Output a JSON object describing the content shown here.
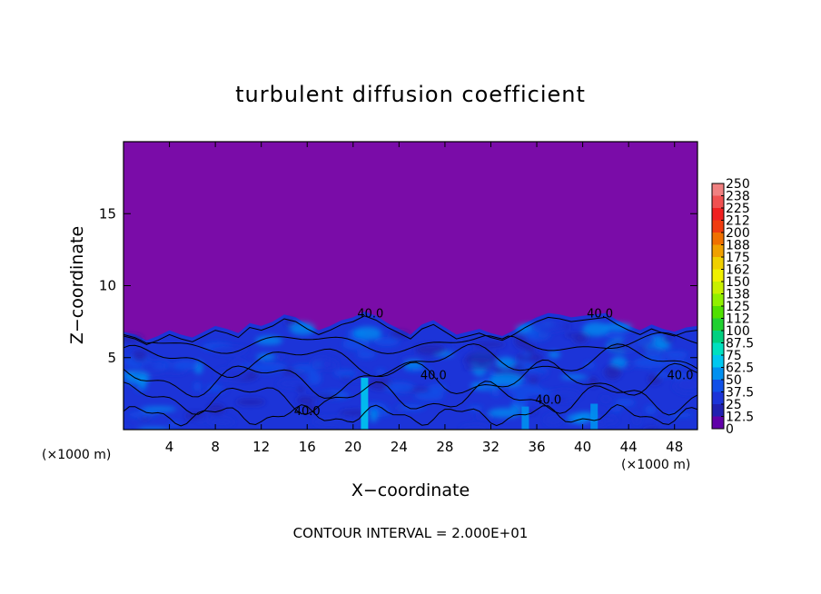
{
  "chart_data": {
    "type": "heatmap",
    "title": "turbulent diffusion coefficient",
    "xlabel": "X−coordinate",
    "ylabel": "Z−coordinate",
    "x_unit_left": "(×1000 m)",
    "x_unit_right": "(×1000 m)",
    "footer": "CONTOUR INTERVAL = 2.000E+01",
    "xlim": [
      0,
      50
    ],
    "ylim": [
      0,
      20
    ],
    "x_ticks": [
      4,
      8,
      12,
      16,
      20,
      24,
      28,
      32,
      36,
      40,
      44,
      48
    ],
    "y_ticks": [
      5,
      10,
      15
    ],
    "contour_interval": 20,
    "contour_labels": [
      {
        "text": "40.0",
        "x": 21.5,
        "y": 7.8
      },
      {
        "text": "40.0",
        "x": 41.5,
        "y": 7.8
      },
      {
        "text": "40.0",
        "x": 27.0,
        "y": 3.5
      },
      {
        "text": "40.0",
        "x": 16.0,
        "y": 1.0
      },
      {
        "text": "40.0",
        "x": 37.0,
        "y": 1.8
      },
      {
        "text": "40.0",
        "x": 48.5,
        "y": 3.5
      }
    ],
    "colorbar": {
      "labels": [
        "250",
        "238",
        "225",
        "212",
        "200",
        "188",
        "175",
        "162",
        "150",
        "138",
        "125",
        "112",
        "100",
        "87.5",
        "75",
        "62.5",
        "50",
        "37.5",
        "25",
        "12.5",
        "0"
      ],
      "colors": [
        "#f08080",
        "#f05050",
        "#f02020",
        "#f03c10",
        "#f07000",
        "#f0a000",
        "#f0d000",
        "#f0f000",
        "#c8f000",
        "#90f000",
        "#50e000",
        "#20d030",
        "#00d080",
        "#00e0c0",
        "#00c8f0",
        "#0090f0",
        "#1050e8",
        "#1c34d8",
        "#2020b0",
        "#6000a8"
      ]
    },
    "background_color": "#7a0ca8",
    "turbulent_layer_top": [
      6.8,
      6.6,
      6.2,
      6.5,
      6.9,
      6.6,
      6.4,
      6.8,
      7.2,
      7.0,
      6.7,
      7.4,
      7.2,
      7.5,
      8.0,
      7.8,
      7.3,
      6.9,
      7.2,
      7.6,
      7.8,
      8.2,
      7.9,
      7.4,
      7.0,
      6.6,
      7.3,
      7.6,
      7.1,
      6.6,
      6.8,
      7.0,
      6.7,
      6.5,
      6.9,
      7.4,
      7.8,
      8.1,
      8.0,
      7.8,
      7.9,
      8.0,
      8.1,
      7.6,
      7.2,
      6.9,
      7.3,
      7.0,
      6.8,
      7.1,
      7.2
    ],
    "bright_columns": [
      {
        "x": 21.0,
        "top": 3.6,
        "value": 70
      },
      {
        "x": 35.0,
        "top": 1.6,
        "value": 55
      },
      {
        "x": 41.0,
        "top": 1.8,
        "value": 55
      }
    ]
  }
}
